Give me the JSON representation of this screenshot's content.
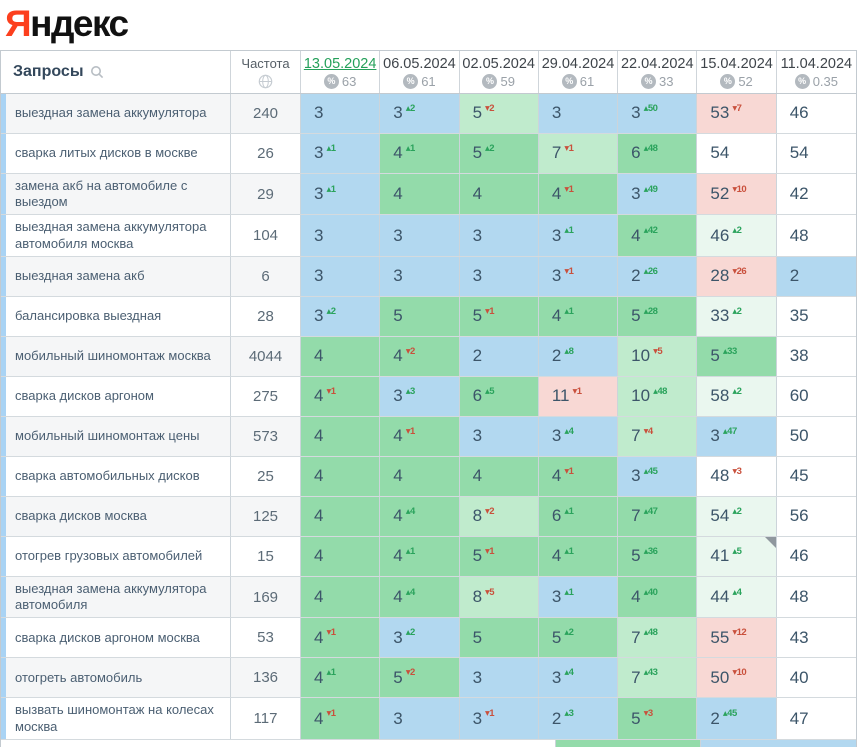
{
  "logo": {
    "first_letter": "Я",
    "rest": "ндекс"
  },
  "colors": {
    "logo_red": "#fc3f1d",
    "selected_date_green": "#24a05a",
    "cell_blue_top3": "#b2d8f0",
    "cell_green_top10": "#93dbaa",
    "cell_green_light": "#c0ebcd",
    "cell_green_faint": "#eaf7ef",
    "cell_pink_drop": "#f8d8d4",
    "change_up_green": "#2aa35c",
    "change_down_red": "#c9503c"
  },
  "table": {
    "queries_header": "Запросы",
    "frequency_header": "Частота",
    "dates": [
      {
        "label": "13.05.2024",
        "metric": "63",
        "selected": true
      },
      {
        "label": "06.05.2024",
        "metric": "61",
        "selected": false
      },
      {
        "label": "02.05.2024",
        "metric": "59",
        "selected": false
      },
      {
        "label": "29.04.2024",
        "metric": "61",
        "selected": false
      },
      {
        "label": "22.04.2024",
        "metric": "33",
        "selected": false
      },
      {
        "label": "15.04.2024",
        "metric": "52",
        "selected": false
      },
      {
        "label": "11.04.2024",
        "metric": "0.35",
        "selected": false
      }
    ],
    "rows": [
      {
        "query": "выездная замена аккумулятора",
        "frequency": "240",
        "cells": [
          {
            "v": "3",
            "bg": "blue"
          },
          {
            "v": "3",
            "d": "2",
            "dir": "up",
            "bg": "blue"
          },
          {
            "v": "5",
            "d": "2",
            "dir": "down",
            "bg": "green2"
          },
          {
            "v": "3",
            "bg": "blue"
          },
          {
            "v": "3",
            "d": "50",
            "dir": "up",
            "bg": "blue"
          },
          {
            "v": "53",
            "d": "7",
            "dir": "down",
            "bg": "pink"
          },
          {
            "v": "46",
            "bg": "white"
          }
        ]
      },
      {
        "query": "сварка литых дисков в москве",
        "frequency": "26",
        "cells": [
          {
            "v": "3",
            "d": "1",
            "dir": "up",
            "bg": "blue"
          },
          {
            "v": "4",
            "d": "1",
            "dir": "up",
            "bg": "green"
          },
          {
            "v": "5",
            "d": "2",
            "dir": "up",
            "bg": "green"
          },
          {
            "v": "7",
            "d": "1",
            "dir": "down",
            "bg": "green2"
          },
          {
            "v": "6",
            "d": "48",
            "dir": "up",
            "bg": "green"
          },
          {
            "v": "54",
            "bg": "white"
          },
          {
            "v": "54",
            "bg": "white"
          }
        ]
      },
      {
        "query": "замена акб на автомобиле с выездом",
        "frequency": "29",
        "cells": [
          {
            "v": "3",
            "d": "1",
            "dir": "up",
            "bg": "blue"
          },
          {
            "v": "4",
            "bg": "green"
          },
          {
            "v": "4",
            "bg": "green"
          },
          {
            "v": "4",
            "d": "1",
            "dir": "down",
            "bg": "green"
          },
          {
            "v": "3",
            "d": "49",
            "dir": "up",
            "bg": "blue"
          },
          {
            "v": "52",
            "d": "10",
            "dir": "down",
            "bg": "pink"
          },
          {
            "v": "42",
            "bg": "white"
          }
        ]
      },
      {
        "query": "выездная замена аккумулятора автомобиля москва",
        "frequency": "104",
        "cells": [
          {
            "v": "3",
            "bg": "blue"
          },
          {
            "v": "3",
            "bg": "blue"
          },
          {
            "v": "3",
            "bg": "blue"
          },
          {
            "v": "3",
            "d": "1",
            "dir": "up",
            "bg": "blue"
          },
          {
            "v": "4",
            "d": "42",
            "dir": "up",
            "bg": "green"
          },
          {
            "v": "46",
            "d": "2",
            "dir": "up",
            "bg": "green3"
          },
          {
            "v": "48",
            "bg": "white"
          }
        ]
      },
      {
        "query": "выездная замена акб",
        "frequency": "6",
        "cells": [
          {
            "v": "3",
            "bg": "blue"
          },
          {
            "v": "3",
            "bg": "blue"
          },
          {
            "v": "3",
            "bg": "blue"
          },
          {
            "v": "3",
            "d": "1",
            "dir": "down",
            "bg": "blue"
          },
          {
            "v": "2",
            "d": "26",
            "dir": "up",
            "bg": "blue"
          },
          {
            "v": "28",
            "d": "26",
            "dir": "down",
            "bg": "pink"
          },
          {
            "v": "2",
            "bg": "blue"
          }
        ]
      },
      {
        "query": "балансировка выездная",
        "frequency": "28",
        "cells": [
          {
            "v": "3",
            "d": "2",
            "dir": "up",
            "bg": "blue"
          },
          {
            "v": "5",
            "bg": "green"
          },
          {
            "v": "5",
            "d": "1",
            "dir": "down",
            "bg": "green"
          },
          {
            "v": "4",
            "d": "1",
            "dir": "up",
            "bg": "green"
          },
          {
            "v": "5",
            "d": "28",
            "dir": "up",
            "bg": "green"
          },
          {
            "v": "33",
            "d": "2",
            "dir": "up",
            "bg": "green3"
          },
          {
            "v": "35",
            "bg": "white"
          }
        ]
      },
      {
        "query": "мобильный шиномонтаж москва",
        "frequency": "4044",
        "cells": [
          {
            "v": "4",
            "bg": "green"
          },
          {
            "v": "4",
            "d": "2",
            "dir": "down",
            "bg": "green"
          },
          {
            "v": "2",
            "bg": "blue"
          },
          {
            "v": "2",
            "d": "8",
            "dir": "up",
            "bg": "blue"
          },
          {
            "v": "10",
            "d": "5",
            "dir": "down",
            "bg": "green2"
          },
          {
            "v": "5",
            "d": "33",
            "dir": "up",
            "bg": "green"
          },
          {
            "v": "38",
            "bg": "white"
          }
        ]
      },
      {
        "query": "сварка дисков аргоном",
        "frequency": "275",
        "cells": [
          {
            "v": "4",
            "d": "1",
            "dir": "down",
            "bg": "green"
          },
          {
            "v": "3",
            "d": "3",
            "dir": "up",
            "bg": "blue"
          },
          {
            "v": "6",
            "d": "5",
            "dir": "up",
            "bg": "green"
          },
          {
            "v": "11",
            "d": "1",
            "dir": "down",
            "bg": "pink"
          },
          {
            "v": "10",
            "d": "48",
            "dir": "up",
            "bg": "green2"
          },
          {
            "v": "58",
            "d": "2",
            "dir": "up",
            "bg": "green3"
          },
          {
            "v": "60",
            "bg": "white"
          }
        ]
      },
      {
        "query": "мобильный шиномонтаж цены",
        "frequency": "573",
        "cells": [
          {
            "v": "4",
            "bg": "green"
          },
          {
            "v": "4",
            "d": "1",
            "dir": "down",
            "bg": "green"
          },
          {
            "v": "3",
            "bg": "blue"
          },
          {
            "v": "3",
            "d": "4",
            "dir": "up",
            "bg": "blue"
          },
          {
            "v": "7",
            "d": "4",
            "dir": "down",
            "bg": "green2"
          },
          {
            "v": "3",
            "d": "47",
            "dir": "up",
            "bg": "blue"
          },
          {
            "v": "50",
            "bg": "white"
          }
        ]
      },
      {
        "query": "сварка автомобильных дисков",
        "frequency": "25",
        "cells": [
          {
            "v": "4",
            "bg": "green"
          },
          {
            "v": "4",
            "bg": "green"
          },
          {
            "v": "4",
            "bg": "green"
          },
          {
            "v": "4",
            "d": "1",
            "dir": "down",
            "bg": "green"
          },
          {
            "v": "3",
            "d": "45",
            "dir": "up",
            "bg": "blue"
          },
          {
            "v": "48",
            "d": "3",
            "dir": "down",
            "bg": "white"
          },
          {
            "v": "45",
            "bg": "white"
          }
        ]
      },
      {
        "query": "сварка дисков москва",
        "frequency": "125",
        "cells": [
          {
            "v": "4",
            "bg": "green"
          },
          {
            "v": "4",
            "d": "4",
            "dir": "up",
            "bg": "green"
          },
          {
            "v": "8",
            "d": "2",
            "dir": "down",
            "bg": "green2"
          },
          {
            "v": "6",
            "d": "1",
            "dir": "up",
            "bg": "green"
          },
          {
            "v": "7",
            "d": "47",
            "dir": "up",
            "bg": "green"
          },
          {
            "v": "54",
            "d": "2",
            "dir": "up",
            "bg": "green3"
          },
          {
            "v": "56",
            "bg": "white"
          }
        ]
      },
      {
        "query": "отогрев грузовых автомобилей",
        "frequency": "15",
        "cells": [
          {
            "v": "4",
            "bg": "green"
          },
          {
            "v": "4",
            "d": "1",
            "dir": "up",
            "bg": "green"
          },
          {
            "v": "5",
            "d": "1",
            "dir": "down",
            "bg": "green"
          },
          {
            "v": "4",
            "d": "1",
            "dir": "up",
            "bg": "green"
          },
          {
            "v": "5",
            "d": "36",
            "dir": "up",
            "bg": "green"
          },
          {
            "v": "41",
            "d": "5",
            "dir": "up",
            "bg": "green3",
            "note": true
          },
          {
            "v": "46",
            "bg": "white"
          }
        ]
      },
      {
        "query": "выездная замена аккумулятора автомобиля",
        "frequency": "169",
        "cells": [
          {
            "v": "4",
            "bg": "green"
          },
          {
            "v": "4",
            "d": "4",
            "dir": "up",
            "bg": "green"
          },
          {
            "v": "8",
            "d": "5",
            "dir": "down",
            "bg": "green2"
          },
          {
            "v": "3",
            "d": "1",
            "dir": "up",
            "bg": "blue"
          },
          {
            "v": "4",
            "d": "40",
            "dir": "up",
            "bg": "green"
          },
          {
            "v": "44",
            "d": "4",
            "dir": "up",
            "bg": "green3"
          },
          {
            "v": "48",
            "bg": "white"
          }
        ]
      },
      {
        "query": "сварка дисков аргоном москва",
        "frequency": "53",
        "cells": [
          {
            "v": "4",
            "d": "1",
            "dir": "down",
            "bg": "green"
          },
          {
            "v": "3",
            "d": "2",
            "dir": "up",
            "bg": "blue"
          },
          {
            "v": "5",
            "bg": "green"
          },
          {
            "v": "5",
            "d": "2",
            "dir": "up",
            "bg": "green"
          },
          {
            "v": "7",
            "d": "48",
            "dir": "up",
            "bg": "green2"
          },
          {
            "v": "55",
            "d": "12",
            "dir": "down",
            "bg": "pink"
          },
          {
            "v": "43",
            "bg": "white"
          }
        ]
      },
      {
        "query": "отогреть автомобиль",
        "frequency": "136",
        "cells": [
          {
            "v": "4",
            "d": "1",
            "dir": "up",
            "bg": "green"
          },
          {
            "v": "5",
            "d": "2",
            "dir": "down",
            "bg": "green"
          },
          {
            "v": "3",
            "bg": "blue"
          },
          {
            "v": "3",
            "d": "4",
            "dir": "up",
            "bg": "blue"
          },
          {
            "v": "7",
            "d": "43",
            "dir": "up",
            "bg": "green2"
          },
          {
            "v": "50",
            "d": "10",
            "dir": "down",
            "bg": "pink"
          },
          {
            "v": "40",
            "bg": "white"
          }
        ]
      },
      {
        "query": "вызвать шиномонтаж на колесах москва",
        "frequency": "117",
        "cells": [
          {
            "v": "4",
            "d": "1",
            "dir": "down",
            "bg": "green"
          },
          {
            "v": "3",
            "bg": "blue"
          },
          {
            "v": "3",
            "d": "1",
            "dir": "down",
            "bg": "blue"
          },
          {
            "v": "2",
            "d": "3",
            "dir": "up",
            "bg": "blue"
          },
          {
            "v": "5",
            "d": "3",
            "dir": "down",
            "bg": "green"
          },
          {
            "v": "2",
            "d": "45",
            "dir": "up",
            "bg": "blue"
          },
          {
            "v": "47",
            "bg": "white"
          }
        ]
      }
    ]
  }
}
